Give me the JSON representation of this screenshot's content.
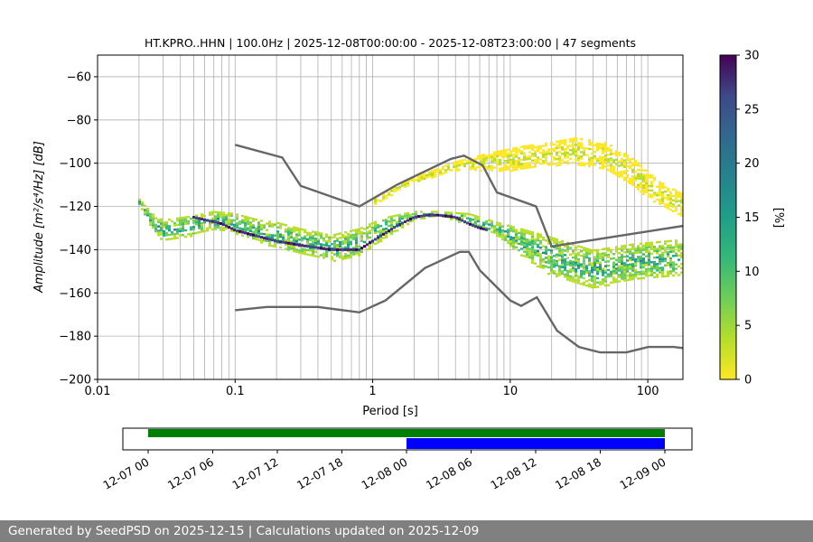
{
  "chart_data": [
    {
      "type": "heatmap",
      "title": "HT.KPRO..HHN | 100.0Hz | 2025-12-08T00:00:00 - 2025-12-08T23:00:00 | 47 segments",
      "xlabel": "Period [s]",
      "ylabel": "Amplitude [m²/s⁴/Hz] [dB]",
      "x_scale": "log",
      "xlim": [
        0.01,
        180
      ],
      "ylim": [
        -200,
        -50
      ],
      "x_ticks": [
        0.01,
        0.1,
        1,
        10,
        100
      ],
      "x_tick_labels": [
        "0.01",
        "0.1",
        "1",
        "10",
        "100"
      ],
      "y_ticks": [
        -200,
        -180,
        -160,
        -140,
        -120,
        -100,
        -80,
        -60
      ],
      "y_tick_labels": [
        "−200",
        "−180",
        "−160",
        "−140",
        "−120",
        "−100",
        "−80",
        "−60"
      ],
      "grid": true,
      "colorbar": {
        "label": "[%]",
        "range": [
          0,
          30
        ],
        "ticks": [
          0,
          5,
          10,
          15,
          20,
          25,
          30
        ],
        "tick_labels": [
          "0",
          "5",
          "10",
          "15",
          "20",
          "25",
          "30"
        ],
        "colormap": "viridis_r"
      },
      "psd_bands": [
        {
          "name": "",
          "period": [
            0.02,
            0.025,
            0.03,
            0.05,
            0.07,
            0.1,
            0.15,
            0.2,
            0.3,
            0.5,
            0.8,
            1.2,
            2,
            3,
            5,
            8,
            12,
            20,
            40,
            80,
            180
          ],
          "lower": [
            -119,
            -130,
            -136,
            -133,
            -130,
            -132,
            -136,
            -139,
            -142,
            -145,
            -143,
            -135,
            -126,
            -124,
            -128,
            -133,
            -142,
            -152,
            -158,
            -153,
            -152
          ],
          "upper": [
            -116,
            -123,
            -126,
            -124,
            -122,
            -123,
            -126,
            -127,
            -130,
            -133,
            -130,
            -125,
            -122,
            -122,
            -123,
            -127,
            -130,
            -134,
            -140,
            -137,
            -135
          ],
          "density": 10
        },
        {
          "name": "",
          "period": [
            1,
            1.5,
            2.5,
            4,
            7,
            12,
            20,
            30,
            50,
            80,
            120,
            180
          ],
          "lower": [
            -120,
            -113,
            -107,
            -103,
            -103,
            -103,
            -101,
            -100,
            -103,
            -111,
            -119,
            -124
          ],
          "upper": [
            -116,
            -110,
            -104,
            -99,
            -95,
            -92,
            -90,
            -88,
            -90,
            -98,
            -108,
            -114
          ],
          "density": 2
        }
      ],
      "mode_line": {
        "period": [
          0.05,
          0.08,
          0.1,
          0.15,
          0.2,
          0.3,
          0.5,
          0.8,
          1.0,
          1.5,
          2.0,
          2.5,
          3.0,
          4.0,
          5.0,
          6.0,
          7.0
        ],
        "value": [
          -125,
          -128,
          -131,
          -134,
          -136,
          -138,
          -140,
          -140,
          -136,
          -129,
          -125,
          -124,
          -124,
          -125,
          -128,
          -130,
          -131
        ],
        "density": 30
      },
      "series": [
        {
          "period": [
            0.1,
            0.22,
            0.3,
            0.8,
            1.5,
            3.7,
            4.6,
            6.3,
            8.0,
            15.4,
            20.0,
            180
          ],
          "value": [
            -91.5,
            -97.4,
            -110.5,
            -120.0,
            -110.0,
            -98.0,
            -96.5,
            -101.0,
            -113.5,
            -120.0,
            -138.5,
            -129.0
          ]
        },
        {
          "period": [
            0.1,
            0.17,
            0.4,
            0.8,
            1.24,
            2.4,
            4.3,
            5.0,
            6.0,
            10.0,
            12.0,
            15.6,
            21.9,
            31.6,
            45.0,
            70.0,
            101.0,
            154.0,
            180
          ],
          "value": [
            -168.0,
            -166.5,
            -166.5,
            -169.0,
            -163.5,
            -148.5,
            -141.0,
            -141.0,
            -149.5,
            -163.5,
            -166.0,
            -162.0,
            -177.5,
            -185.0,
            -187.5,
            -187.5,
            -185.0,
            -185.0,
            -185.5
          ]
        }
      ]
    },
    {
      "type": "timeline",
      "tick_labels": [
        "12-07 00",
        "12-07 06",
        "12-07 12",
        "12-07 18",
        "12-08 00",
        "12-08 06",
        "12-08 12",
        "12-08 18",
        "12-09 00"
      ],
      "bars": [
        {
          "color": "#008000",
          "start": "12-07 00",
          "end": "12-09 00"
        },
        {
          "color": "#0000ff",
          "start": "12-08 00",
          "end": "12-09 00"
        }
      ]
    }
  ],
  "footer": {
    "text": "Generated by SeedPSD on 2025-12-15 | Calculations updated on 2025-12-09"
  }
}
